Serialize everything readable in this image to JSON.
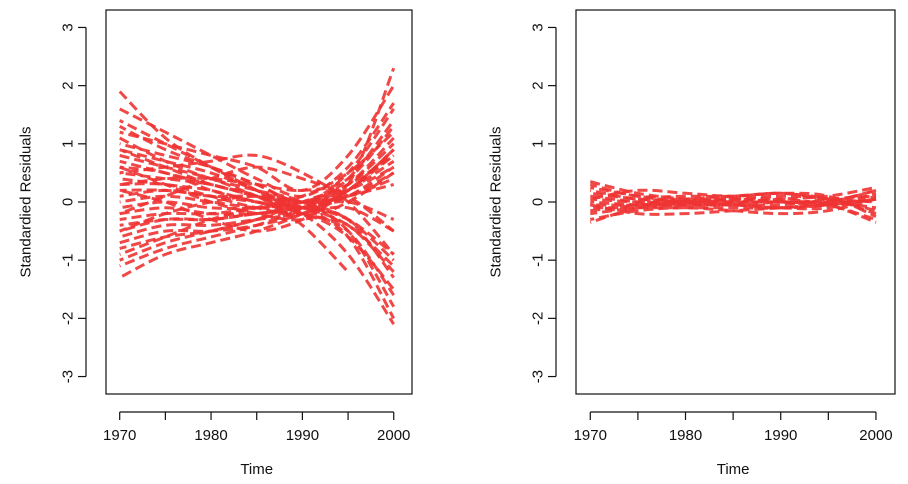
{
  "colors": {
    "line": "#ee3333",
    "axis": "#111111"
  },
  "chart_data": [
    {
      "type": "line",
      "xlabel": "Time",
      "ylabel": "Standardied Residuals",
      "xlim": [
        1968.5,
        2002
      ],
      "ylim": [
        -3.3,
        3.3
      ],
      "xticks": [
        1970,
        1980,
        1990,
        2000
      ],
      "yticks": [
        -3,
        -2,
        -1,
        0,
        1,
        2,
        3
      ],
      "x": [
        1970,
        1975,
        1980,
        1985,
        1990,
        1995,
        2000
      ],
      "series": [
        {
          "values": [
            1.9,
            1.1,
            0.6,
            0.2,
            -0.1,
            0.1,
            0.6
          ]
        },
        {
          "values": [
            1.3,
            0.9,
            0.6,
            0.3,
            0.0,
            0.3,
            2.3
          ]
        },
        {
          "values": [
            1.2,
            1.0,
            0.8,
            0.6,
            0.2,
            0.8,
            2.0
          ]
        },
        {
          "values": [
            1.0,
            0.8,
            0.6,
            0.3,
            0.0,
            0.5,
            1.6
          ]
        },
        {
          "values": [
            0.9,
            0.7,
            0.5,
            0.2,
            -0.1,
            -0.6,
            -2.0
          ]
        },
        {
          "values": [
            0.8,
            0.6,
            0.4,
            0.1,
            -0.2,
            -0.9,
            -2.1
          ]
        },
        {
          "values": [
            0.7,
            0.5,
            0.3,
            0.1,
            -0.1,
            0.3,
            1.1
          ]
        },
        {
          "values": [
            0.6,
            0.5,
            0.2,
            0.0,
            -0.2,
            -0.5,
            -1.6
          ]
        },
        {
          "values": [
            0.5,
            0.4,
            0.3,
            0.1,
            0.0,
            0.2,
            0.9
          ]
        },
        {
          "values": [
            0.4,
            0.3,
            0.2,
            0.0,
            -0.1,
            -0.3,
            -1.3
          ]
        },
        {
          "values": [
            0.3,
            0.3,
            0.1,
            -0.1,
            -0.2,
            0.2,
            0.7
          ]
        },
        {
          "values": [
            0.2,
            0.2,
            0.1,
            0.0,
            -0.1,
            -0.4,
            -1.1
          ]
        },
        {
          "values": [
            0.1,
            0.2,
            0.1,
            0.1,
            0.0,
            0.1,
            0.4
          ]
        },
        {
          "values": [
            0.0,
            0.1,
            0.0,
            -0.1,
            -0.1,
            0.0,
            -0.3
          ]
        },
        {
          "values": [
            -0.1,
            0.0,
            -0.1,
            -0.1,
            0.0,
            0.3,
            1.0
          ]
        },
        {
          "values": [
            -0.2,
            -0.1,
            -0.2,
            -0.2,
            -0.1,
            -0.3,
            -0.9
          ]
        },
        {
          "values": [
            -0.3,
            -0.2,
            -0.2,
            -0.1,
            0.0,
            0.2,
            0.6
          ]
        },
        {
          "values": [
            -0.4,
            -0.3,
            -0.3,
            -0.2,
            -0.2,
            -0.6,
            -1.5
          ]
        },
        {
          "values": [
            -0.5,
            -0.3,
            -0.3,
            -0.2,
            -0.1,
            0.1,
            0.3
          ]
        },
        {
          "values": [
            -0.6,
            -0.4,
            -0.4,
            -0.3,
            -0.2,
            -0.1,
            -0.5
          ]
        },
        {
          "values": [
            -0.7,
            -0.5,
            -0.5,
            -0.4,
            -0.2,
            0.2,
            0.9
          ]
        },
        {
          "values": [
            -0.8,
            -0.6,
            -0.5,
            -0.3,
            -0.1,
            0.1,
            0.5
          ]
        },
        {
          "values": [
            -1.0,
            -0.7,
            -0.5,
            -0.3,
            0.0,
            0.3,
            0.8
          ]
        },
        {
          "values": [
            -1.1,
            -0.8,
            -0.6,
            -0.4,
            -0.1,
            0.4,
            1.4
          ]
        },
        {
          "values": [
            -1.3,
            -0.9,
            -0.7,
            -0.5,
            -0.2,
            0.2,
            0.9
          ]
        },
        {
          "values": [
            1.1,
            0.7,
            0.4,
            0.2,
            0.0,
            -0.5,
            -1.8
          ]
        },
        {
          "values": [
            0.9,
            0.6,
            0.3,
            0.1,
            -0.4,
            -1.2,
            null
          ]
        },
        {
          "values": [
            0.5,
            0.6,
            0.7,
            0.8,
            0.5,
            0.0,
            -0.9
          ]
        },
        {
          "values": [
            -0.2,
            0.1,
            0.4,
            0.6,
            0.4,
            0.1,
            -0.5
          ]
        },
        {
          "values": [
            0.2,
            0.0,
            -0.3,
            -0.5,
            -0.3,
            0.2,
            0.8
          ]
        },
        {
          "values": [
            0.6,
            0.3,
            0.0,
            -0.2,
            -0.3,
            0.0,
            0.5
          ]
        },
        {
          "values": [
            -0.5,
            -0.2,
            0.0,
            0.1,
            0.0,
            -0.3,
            -1.0
          ]
        },
        {
          "values": [
            1.4,
            1.0,
            0.6,
            0.2,
            -0.2,
            -0.4,
            -1.2
          ]
        },
        {
          "values": [
            -0.9,
            -0.6,
            -0.3,
            -0.1,
            0.1,
            0.5,
            1.2
          ]
        },
        {
          "values": [
            0.3,
            0.4,
            0.4,
            0.3,
            0.2,
            0.4,
            1.3
          ]
        },
        {
          "values": [
            1.6,
            1.2,
            0.8,
            0.4,
            0.1,
            0.6,
            1.7
          ]
        }
      ]
    },
    {
      "type": "line",
      "xlabel": "Time",
      "ylabel": "Standardied Residuals",
      "xlim": [
        1968.5,
        2002
      ],
      "ylim": [
        -3.3,
        3.3
      ],
      "xticks": [
        1970,
        1980,
        1990,
        2000
      ],
      "yticks": [
        -3,
        -2,
        -1,
        0,
        1,
        2,
        3
      ],
      "x": [
        1970,
        1975,
        1980,
        1985,
        1990,
        1995,
        2000
      ],
      "series": [
        {
          "values": [
            0.35,
            0.15,
            0.05,
            0.0,
            0.0,
            -0.05,
            0.15
          ]
        },
        {
          "values": [
            0.3,
            0.1,
            0.1,
            0.1,
            0.15,
            0.05,
            -0.2
          ]
        },
        {
          "values": [
            0.25,
            0.1,
            0.0,
            -0.05,
            0.0,
            0.0,
            0.2
          ]
        },
        {
          "values": [
            0.2,
            0.05,
            0.05,
            0.05,
            0.05,
            -0.05,
            -0.3
          ]
        },
        {
          "values": [
            0.15,
            0.05,
            0.0,
            0.0,
            0.05,
            0.1,
            0.25
          ]
        },
        {
          "values": [
            0.1,
            0.0,
            -0.05,
            -0.05,
            -0.05,
            0.05,
            0.1
          ]
        },
        {
          "values": [
            0.05,
            0.0,
            0.0,
            0.0,
            0.0,
            0.0,
            -0.1
          ]
        },
        {
          "values": [
            0.0,
            -0.05,
            -0.05,
            -0.05,
            -0.1,
            -0.05,
            0.05
          ]
        },
        {
          "values": [
            -0.05,
            -0.05,
            0.0,
            0.05,
            0.1,
            0.05,
            -0.15
          ]
        },
        {
          "values": [
            -0.1,
            -0.1,
            -0.1,
            -0.1,
            -0.1,
            0.0,
            0.2
          ]
        },
        {
          "values": [
            -0.15,
            -0.05,
            0.05,
            0.1,
            0.15,
            0.1,
            -0.25
          ]
        },
        {
          "values": [
            -0.2,
            -0.1,
            -0.05,
            -0.05,
            -0.1,
            -0.1,
            0.1
          ]
        },
        {
          "values": [
            -0.3,
            -0.15,
            -0.1,
            -0.15,
            -0.2,
            -0.15,
            0.05
          ]
        },
        {
          "values": [
            -0.35,
            -0.1,
            0.0,
            0.05,
            0.0,
            -0.05,
            -0.35
          ]
        },
        {
          "values": [
            0.05,
            0.2,
            0.15,
            0.1,
            0.15,
            0.05,
            0.0
          ]
        },
        {
          "values": [
            -0.05,
            -0.2,
            -0.2,
            -0.15,
            -0.1,
            -0.05,
            0.05
          ]
        }
      ]
    }
  ]
}
